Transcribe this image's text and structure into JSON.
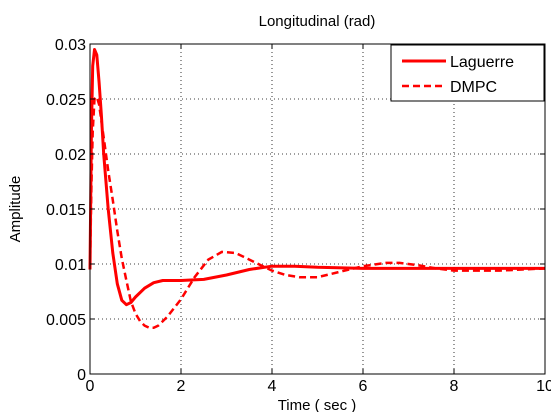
{
  "chart_data": {
    "type": "line",
    "title": "Longitudinal (rad)",
    "xlabel": "Time ( sec )",
    "ylabel": "Amplitude",
    "xlim": [
      0,
      10
    ],
    "ylim": [
      0,
      0.03
    ],
    "x_ticks": [
      0,
      2,
      4,
      6,
      8,
      10
    ],
    "x_tick_labels": [
      "0",
      "2",
      "4",
      "6",
      "8",
      "10"
    ],
    "y_ticks": [
      0,
      0.005,
      0.01,
      0.015,
      0.02,
      0.025,
      0.03
    ],
    "y_tick_labels": [
      "0",
      "0.005",
      "0.01",
      "0.015",
      "0.02",
      "0.025",
      "0.03"
    ],
    "grid": true,
    "legend_position": "top-right",
    "series_color": "#ff0000",
    "series": [
      {
        "name": "Laguerre",
        "style": "solid",
        "x": [
          0,
          0.03,
          0.06,
          0.1,
          0.15,
          0.2,
          0.25,
          0.3,
          0.4,
          0.5,
          0.6,
          0.7,
          0.8,
          0.9,
          1.0,
          1.2,
          1.4,
          1.6,
          1.8,
          2.0,
          2.5,
          3.0,
          3.5,
          4.0,
          4.5,
          5.0,
          6.0,
          7.0,
          8.0,
          9.0,
          10.0
        ],
        "y": [
          0.0095,
          0.022,
          0.028,
          0.0295,
          0.029,
          0.0265,
          0.0235,
          0.02,
          0.015,
          0.011,
          0.0082,
          0.0067,
          0.0063,
          0.0065,
          0.007,
          0.0078,
          0.0083,
          0.0085,
          0.0085,
          0.0085,
          0.0086,
          0.009,
          0.0095,
          0.0098,
          0.0098,
          0.0097,
          0.0096,
          0.0096,
          0.0096,
          0.0096,
          0.0096
        ]
      },
      {
        "name": "DMPC",
        "style": "dashed",
        "x": [
          0,
          0.03,
          0.06,
          0.1,
          0.15,
          0.2,
          0.25,
          0.3,
          0.4,
          0.5,
          0.6,
          0.7,
          0.8,
          0.9,
          1.0,
          1.1,
          1.2,
          1.3,
          1.4,
          1.5,
          1.7,
          2.0,
          2.3,
          2.6,
          2.9,
          3.2,
          3.5,
          3.8,
          4.0,
          4.3,
          4.6,
          5.0,
          5.5,
          6.0,
          6.5,
          6.8,
          7.2,
          7.6,
          8.0,
          8.5,
          9.0,
          9.5,
          10.0
        ],
        "y": [
          0.0095,
          0.017,
          0.022,
          0.025,
          0.0252,
          0.0245,
          0.023,
          0.0215,
          0.0185,
          0.0158,
          0.013,
          0.0105,
          0.0085,
          0.0066,
          0.0055,
          0.0048,
          0.0044,
          0.0042,
          0.0042,
          0.0044,
          0.0052,
          0.0068,
          0.0088,
          0.0104,
          0.0111,
          0.011,
          0.0104,
          0.0098,
          0.0094,
          0.009,
          0.0088,
          0.0088,
          0.0093,
          0.0098,
          0.0101,
          0.0101,
          0.0099,
          0.0096,
          0.0094,
          0.0094,
          0.0094,
          0.0095,
          0.0096
        ]
      }
    ]
  }
}
